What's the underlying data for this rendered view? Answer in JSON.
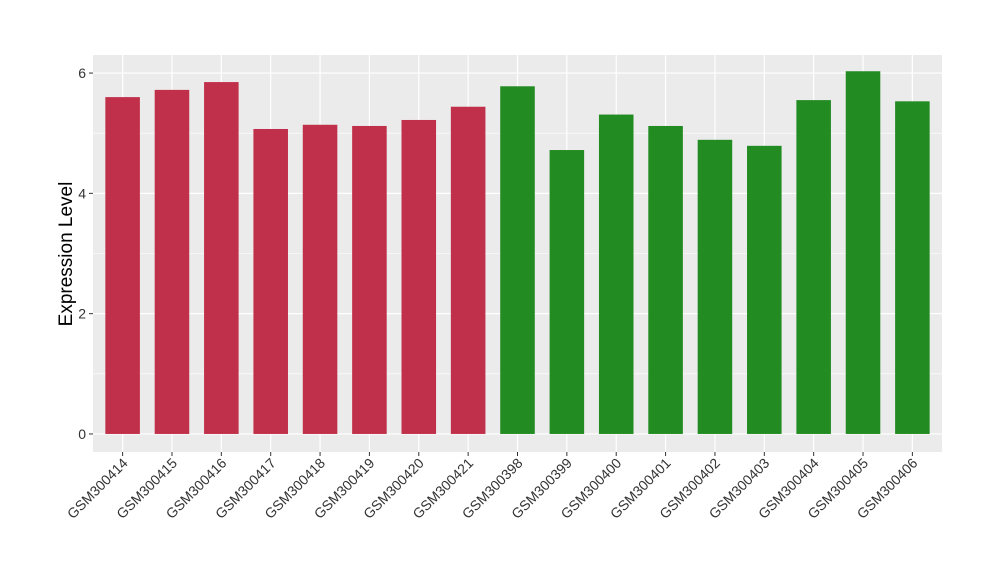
{
  "chart_data": {
    "type": "bar",
    "title": "",
    "xlabel": "",
    "ylabel": "Expression Level",
    "ylim": [
      -0.3,
      6.3
    ],
    "yticks": [
      0,
      2,
      4,
      6
    ],
    "grid": true,
    "legend": "none",
    "categories": [
      "GSM300414",
      "GSM300415",
      "GSM300416",
      "GSM300417",
      "GSM300418",
      "GSM300419",
      "GSM300420",
      "GSM300421",
      "GSM300398",
      "GSM300399",
      "GSM300400",
      "GSM300401",
      "GSM300402",
      "GSM300403",
      "GSM300404",
      "GSM300405",
      "GSM300406"
    ],
    "values": [
      5.6,
      5.72,
      5.85,
      5.07,
      5.14,
      5.12,
      5.22,
      5.44,
      5.78,
      4.72,
      5.31,
      5.12,
      4.89,
      4.79,
      5.55,
      6.03,
      5.53
    ],
    "bar_colors": [
      "#c1304a",
      "#c1304a",
      "#c1304a",
      "#c1304a",
      "#c1304a",
      "#c1304a",
      "#c1304a",
      "#c1304a",
      "#228b22",
      "#228b22",
      "#228b22",
      "#228b22",
      "#228b22",
      "#228b22",
      "#228b22",
      "#228b22",
      "#228b22"
    ],
    "panel_background": "#ebebeb"
  }
}
